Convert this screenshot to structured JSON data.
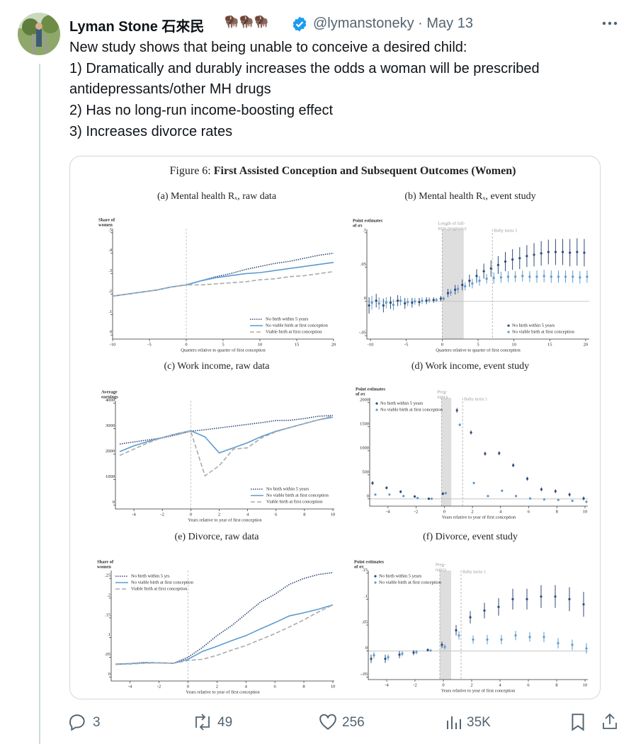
{
  "tweet": {
    "author_name": "Lyman Stone 石來民",
    "author_emoji": "🦬🦬🦬",
    "handle": "@lymanstoneky",
    "date": "May 13",
    "text": [
      "New study shows that being unable to conceive a desired child:",
      "1) Dramatically and durably increases the odds a woman will be prescribed",
      "antidepressants/other MH drugs",
      "2) Has no long-run income-boosting effect",
      "3) Increases divorce rates"
    ]
  },
  "figure": {
    "label": "Figure 6:",
    "title": "First Assisted Conception and Subsequent Outcomes (Women)",
    "panels": [
      {
        "type": "line",
        "title": "(a) Mental health Rₓ, raw data",
        "ylabel": [
          "Share of",
          "women"
        ],
        "xlabel": "Quarters relative to quarter of first conception",
        "xlim": [
          -10,
          20
        ],
        "ylim": [
          -0.02,
          0.52
        ],
        "xticks": [
          -10,
          -5,
          0,
          5,
          10,
          15,
          20
        ],
        "yticks": [
          0,
          {
            "value": 0.1,
            "label": ".1"
          },
          {
            "value": 0.2,
            "label": ".2"
          },
          {
            "value": 0.3,
            "label": ".3"
          },
          {
            "value": 0.4,
            "label": ".4"
          },
          {
            "value": 0.5,
            "label": ".5"
          }
        ],
        "legend": "lower right",
        "x": [
          -10,
          -8,
          -6,
          -4,
          -2,
          0,
          2,
          4,
          6,
          8,
          10,
          12,
          14,
          16,
          18,
          20
        ],
        "series": [
          {
            "name": "No birth within 5 years",
            "color": "#2f4a78",
            "style": "dotted",
            "values": [
              0.19,
              0.2,
              0.21,
              0.22,
              0.235,
              0.245,
              0.265,
              0.285,
              0.3,
              0.32,
              0.335,
              0.35,
              0.36,
              0.375,
              0.39,
              0.4
            ]
          },
          {
            "name": "No viable birth at first conception",
            "color": "#5b9bd0",
            "style": "solid",
            "values": [
              0.19,
              0.2,
              0.21,
              0.22,
              0.235,
              0.245,
              0.265,
              0.28,
              0.29,
              0.3,
              0.305,
              0.315,
              0.325,
              0.335,
              0.345,
              0.355
            ]
          },
          {
            "name": "Viable birth at first conception",
            "color": "#aaaaaa",
            "style": "dashed",
            "values": [
              0.19,
              0.2,
              0.21,
              0.22,
              0.235,
              0.245,
              0.245,
              0.25,
              0.255,
              0.26,
              0.27,
              0.275,
              0.285,
              0.29,
              0.3,
              0.31
            ]
          }
        ]
      },
      {
        "type": "scatter",
        "title": "(b) Mental health Rₓ, event study",
        "ylabel": [
          "Point estimates",
          "of στ"
        ],
        "xlabel": "Quarters relative to quarter of first conception",
        "xlim": [
          -10.5,
          20.5
        ],
        "ylim": [
          -0.055,
          0.105
        ],
        "xticks": [
          -10,
          -5,
          0,
          5,
          10,
          15,
          20
        ],
        "yticks": [
          {
            "value": -0.05,
            "label": "-.05"
          },
          0,
          {
            "value": 0.05,
            "label": ".05"
          },
          {
            "value": 0.1,
            "label": ".1"
          }
        ],
        "shade": [
          0,
          3
        ],
        "shade_label": [
          "Length of full-",
          "term pregnancy"
        ],
        "vline": 7,
        "vline_label": "Baby turns 1",
        "legend": "lower right",
        "x": [
          -10,
          -9,
          -8,
          -7,
          -6,
          -5,
          -4,
          -3,
          -2,
          -1,
          0,
          1,
          2,
          3,
          4,
          5,
          6,
          7,
          8,
          9,
          10,
          11,
          12,
          13,
          14,
          15,
          16,
          17,
          18,
          19,
          20
        ],
        "series": [
          {
            "name": "No birth within 5 years",
            "color": "#2f4a78",
            "values": [
              -0.006,
              0.001,
              -0.006,
              -0.002,
              0.001,
              -0.003,
              -0.002,
              -0.001,
              0.001,
              0.002,
              0.004,
              0.012,
              0.017,
              0.024,
              0.03,
              0.037,
              0.044,
              0.048,
              0.053,
              0.058,
              0.061,
              0.063,
              0.066,
              0.068,
              0.07,
              0.072,
              0.072,
              0.072,
              0.071,
              0.072,
              0.071
            ],
            "errors": [
              0.012,
              0.01,
              0.01,
              0.009,
              0.008,
              0.008,
              0.007,
              0.006,
              0.005,
              0.004,
              0.004,
              0.006,
              0.007,
              0.008,
              0.009,
              0.01,
              0.011,
              0.012,
              0.013,
              0.014,
              0.015,
              0.016,
              0.016,
              0.017,
              0.018,
              0.018,
              0.019,
              0.019,
              0.02,
              0.02,
              0.02
            ]
          },
          {
            "name": "No viable birth at first conception",
            "color": "#5b9bd0",
            "values": [
              -0.002,
              -0.003,
              -0.002,
              -0.005,
              0.001,
              -0.001,
              0,
              0.001,
              0.002,
              0.002,
              0.004,
              0.013,
              0.018,
              0.022,
              0.026,
              0.03,
              0.033,
              0.034,
              0.035,
              0.036,
              0.036,
              0.037,
              0.036,
              0.036,
              0.037,
              0.036,
              0.036,
              0.036,
              0.036,
              0.035,
              0.036
            ],
            "errors": [
              0.01,
              0.009,
              0.008,
              0.008,
              0.007,
              0.006,
              0.005,
              0.005,
              0.004,
              0.003,
              0.003,
              0.005,
              0.006,
              0.006,
              0.007,
              0.007,
              0.007,
              0.008,
              0.008,
              0.008,
              0.008,
              0.008,
              0.008,
              0.009,
              0.009,
              0.009,
              0.009,
              0.009,
              0.009,
              0.009,
              0.009
            ]
          }
        ]
      },
      {
        "type": "line",
        "title": "(c) Work income, raw data",
        "ylabel": [
          "Average",
          "earnings"
        ],
        "xlabel": "Years relative to year of first conception",
        "xlim": [
          -5.3,
          10.1
        ],
        "ylim": [
          -150,
          4100
        ],
        "xticks": [
          -4,
          -2,
          0,
          2,
          4,
          6,
          8,
          10
        ],
        "yticks": [
          0,
          1000,
          2000,
          3000,
          4000
        ],
        "legend": "lower right",
        "x": [
          -5,
          -4,
          -3,
          -2,
          -1,
          0,
          1,
          2,
          3,
          4,
          5,
          6,
          7,
          8,
          9,
          10
        ],
        "series": [
          {
            "name": "No birth within 5 years",
            "color": "#2f4a78",
            "style": "dotted",
            "values": [
              2400,
              2480,
              2560,
              2640,
              2760,
              2900,
              2960,
              3030,
              3100,
              3170,
              3240,
              3320,
              3330,
              3400,
              3490,
              3520
            ]
          },
          {
            "name": "No viable birth at first conception",
            "color": "#5b9bd0",
            "style": "solid",
            "values": [
              2100,
              2330,
              2500,
              2650,
              2800,
              2920,
              2680,
              2050,
              2250,
              2450,
              2700,
              2900,
              3050,
              3200,
              3350,
              3450
            ]
          },
          {
            "name": "Viable birth at first conception",
            "color": "#aaaaaa",
            "style": "dashed",
            "values": [
              1950,
              2200,
              2450,
              2650,
              2800,
              2900,
              1150,
              1550,
              2200,
              2250,
              2650,
              2880,
              3050,
              3200,
              3350,
              3500
            ]
          }
        ]
      },
      {
        "type": "scatter",
        "title": "(d) Work income, event study",
        "ylabel": [
          "Point estimates",
          "of στ"
        ],
        "xlabel": "Years relative to year of first conception",
        "xlim": [
          -5.3,
          10.2
        ],
        "ylim": [
          -150,
          2100
        ],
        "xticks": [
          -4,
          -2,
          0,
          2,
          4,
          6,
          8,
          10
        ],
        "yticks": [
          0,
          500,
          1000,
          1500,
          2000
        ],
        "shade": [
          -0.2,
          0.5
        ],
        "shade_label": [
          "Preg-",
          "nancy"
        ],
        "vline": 1.3,
        "vline_label": "Baby turns 1",
        "legend": "upper left",
        "x": [
          -5,
          -4,
          -3,
          -2,
          -1,
          0,
          1,
          2,
          3,
          4,
          5,
          6,
          7,
          8,
          9,
          10
        ],
        "series": [
          {
            "name": "No birth within 5 years",
            "color": "#2f4a78",
            "values": [
              330,
              230,
              150,
              50,
              5,
              110,
              1840,
              1380,
              940,
              950,
              700,
              420,
              200,
              160,
              90,
              10
            ],
            "errors": [
              40,
              30,
              30,
              25,
              15,
              30,
              50,
              40,
              40,
              40,
              40,
              40,
              40,
              40,
              40,
              40
            ]
          },
          {
            "name": "No viable birth at first conception",
            "color": "#5b9bd0",
            "values": [
              90,
              90,
              60,
              20,
              5,
              120,
              1540,
              330,
              60,
              170,
              60,
              10,
              -10,
              -20,
              -40,
              -60
            ],
            "errors": [
              25,
              20,
              20,
              15,
              10,
              25,
              30,
              25,
              25,
              25,
              25,
              25,
              25,
              25,
              25,
              25
            ]
          }
        ]
      },
      {
        "type": "line",
        "title": "(e) Divorce, raw data",
        "ylabel": [
          "Share of",
          "women"
        ],
        "xlabel": "Years relative to year of first conception",
        "xlim": [
          -5.3,
          10.1
        ],
        "ylim": [
          -0.01,
          0.27
        ],
        "xticks": [
          -4,
          -2,
          0,
          2,
          4,
          6,
          8,
          10
        ],
        "yticks": [
          0,
          {
            "value": 0.05,
            "label": ".05"
          },
          {
            "value": 0.1,
            "label": ".1"
          },
          {
            "value": 0.15,
            "label": ".15"
          },
          {
            "value": 0.2,
            "label": ".2"
          },
          {
            "value": 0.25,
            "label": ".25"
          }
        ],
        "legend": "upper left",
        "x": [
          -5,
          -4,
          -3,
          -2,
          -1,
          0,
          1,
          2,
          3,
          4,
          5,
          6,
          7,
          8,
          9,
          10
        ],
        "series": [
          {
            "name": "No birth within 5 yrs",
            "color": "#2f4a78",
            "style": "dotted",
            "values": [
              0.032,
              0.034,
              0.037,
              0.036,
              0.035,
              0.05,
              0.075,
              0.105,
              0.13,
              0.16,
              0.19,
              0.21,
              0.235,
              0.25,
              0.26,
              0.265
            ]
          },
          {
            "name": "No viable birth at first conception",
            "color": "#5b9bd0",
            "style": "solid",
            "values": [
              0.033,
              0.034,
              0.036,
              0.036,
              0.035,
              0.045,
              0.065,
              0.078,
              0.092,
              0.105,
              0.122,
              0.138,
              0.155,
              0.163,
              0.172,
              0.183
            ]
          },
          {
            "name": "Viable birth at first conception",
            "color": "#aaaaaa",
            "style": "dashed",
            "values": [
              0.032,
              0.033,
              0.035,
              0.036,
              0.035,
              0.042,
              0.045,
              0.055,
              0.068,
              0.08,
              0.095,
              0.11,
              0.127,
              0.145,
              0.165,
              0.183
            ]
          }
        ]
      },
      {
        "type": "scatter",
        "title": "(f) Divorce, event study",
        "ylabel": [
          "Point estimates",
          "of στ"
        ],
        "xlabel": "Years relative to year of first conception",
        "xlim": [
          -5.3,
          10.2
        ],
        "ylim": [
          -0.055,
          0.155
        ],
        "xticks": [
          -4,
          -2,
          0,
          2,
          4,
          6,
          8,
          10
        ],
        "yticks": [
          {
            "value": -0.05,
            "label": "-.05"
          },
          0,
          {
            "value": 0.05,
            "label": ".05"
          },
          {
            "value": 0.1,
            "label": ".1"
          },
          {
            "value": 0.15,
            "label": ".15"
          }
        ],
        "shade": [
          -0.25,
          0.55
        ],
        "shade_label": [
          "Preg-",
          "nancy"
        ],
        "vline": 1.25,
        "vline_label": "Baby turns 1",
        "legend": "upper left",
        "x": [
          -5,
          -4,
          -3,
          -2,
          -1,
          0,
          1,
          2,
          3,
          4,
          5,
          6,
          7,
          8,
          9,
          10
        ],
        "series": [
          {
            "name": "No birth within 5 years",
            "color": "#2f4a78",
            "values": [
              -0.015,
              -0.015,
              -0.007,
              -0.003,
              0.002,
              0.012,
              0.04,
              0.065,
              0.078,
              0.085,
              0.1,
              0.1,
              0.105,
              0.105,
              0.1,
              0.09
            ],
            "errors": [
              0.008,
              0.008,
              0.007,
              0.005,
              0.003,
              0.006,
              0.01,
              0.012,
              0.015,
              0.017,
              0.02,
              0.02,
              0.022,
              0.022,
              0.023,
              0.024
            ]
          },
          {
            "name": "No viable birth at first conception",
            "color": "#5b9bd0",
            "values": [
              -0.008,
              -0.012,
              -0.005,
              -0.002,
              0.001,
              0.008,
              0.03,
              0.022,
              0.022,
              0.022,
              0.03,
              0.027,
              0.027,
              0.015,
              0.012,
              0.005
            ],
            "errors": [
              0.006,
              0.006,
              0.005,
              0.004,
              0.002,
              0.005,
              0.008,
              0.008,
              0.009,
              0.009,
              0.009,
              0.009,
              0.01,
              0.01,
              0.01,
              0.01
            ]
          }
        ]
      }
    ]
  },
  "actions": {
    "replies": 3,
    "retweets": 49,
    "likes": 256,
    "views": "35K"
  }
}
